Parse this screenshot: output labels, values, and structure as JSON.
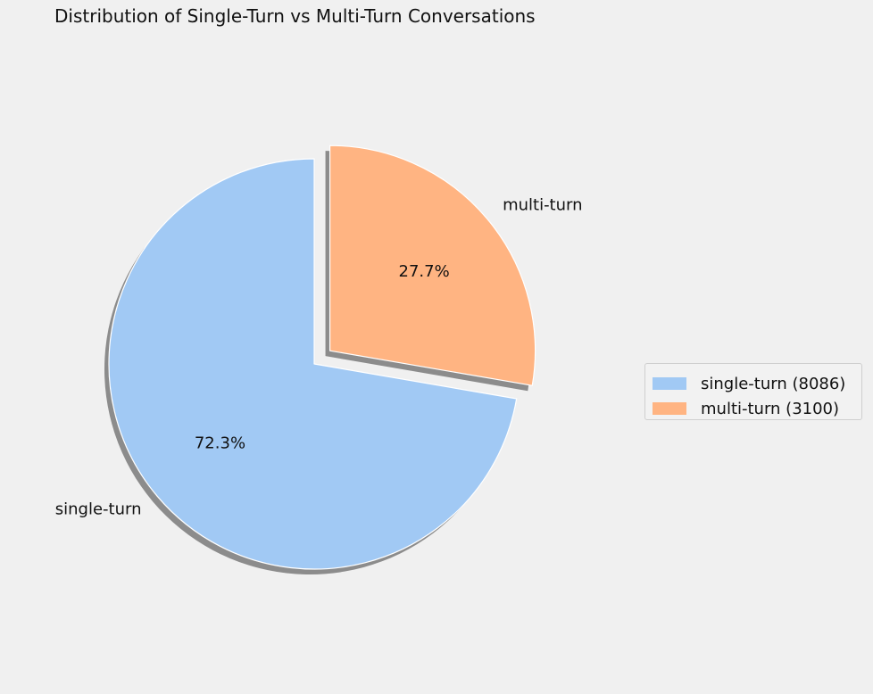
{
  "chart_data": {
    "type": "pie",
    "title": "Distribution of Single-Turn vs Multi-Turn Conversations",
    "slices": [
      {
        "label": "single-turn",
        "value": 8086,
        "percent_label": "72.3%",
        "legend_label": "single-turn (8086)",
        "color": "#a1c9f4",
        "exploded": false
      },
      {
        "label": "multi-turn",
        "value": 3100,
        "percent_label": "27.7%",
        "legend_label": "multi-turn (3100)",
        "color": "#ffb482",
        "exploded": true
      }
    ],
    "start_angle_deg": 90,
    "direction": "counterclockwise",
    "shadow": true,
    "legend_position": "center-right"
  }
}
